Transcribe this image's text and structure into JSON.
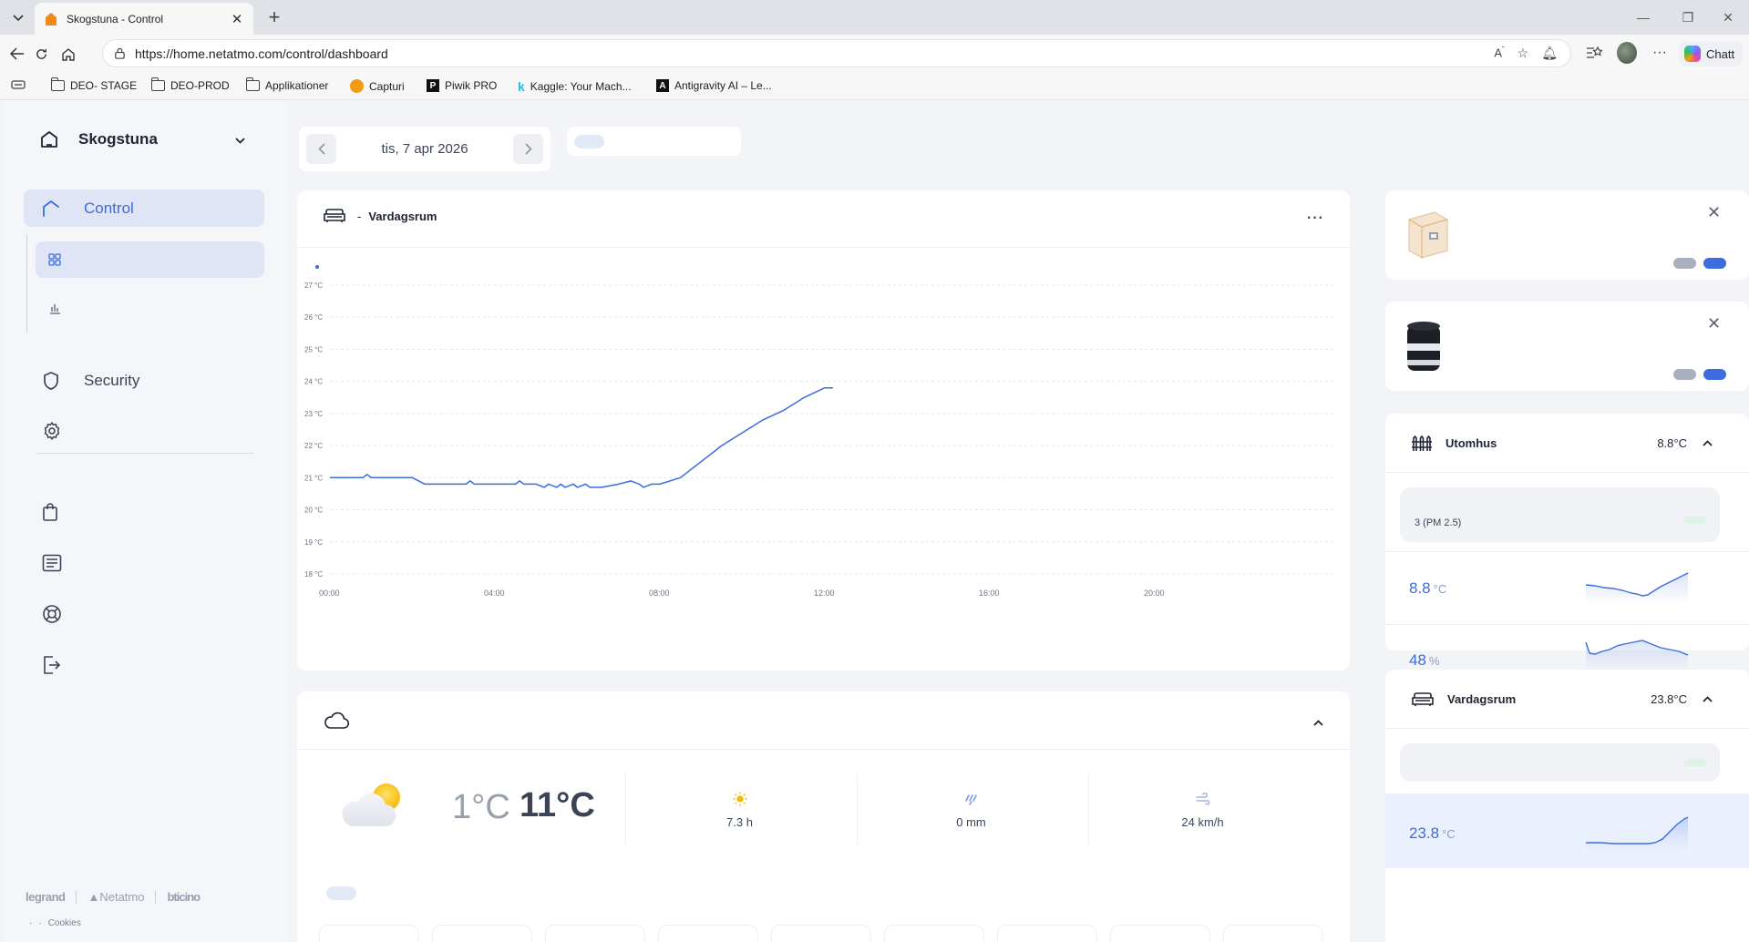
{
  "browser": {
    "tab_title": "Skogstuna - Control",
    "url": "https://home.netatmo.com/control/dashboard",
    "copilot_label": "Chatt",
    "bookmarks": [
      {
        "label": "DEO- STAGE",
        "icon": "folder-icon"
      },
      {
        "label": "DEO-PROD",
        "icon": "folder-icon"
      },
      {
        "label": "Applikationer",
        "icon": "folder-icon"
      },
      {
        "label": "Capturi",
        "icon": "capturi-icon"
      },
      {
        "label": "Piwik PRO",
        "icon": "piwik-icon"
      },
      {
        "label": "Kaggle: Your Mach...",
        "icon": "kaggle-icon"
      },
      {
        "label": "Antigravity AI – Le...",
        "icon": "antigravity-icon"
      }
    ]
  },
  "sidebar": {
    "home_name": "Skogstuna",
    "nav": {
      "control": "Control",
      "security": "Security"
    },
    "brands": {
      "legrand": "legrand",
      "netatmo": "Netatmo",
      "bticino": "bticino"
    },
    "footer_links": [
      "·",
      "·",
      "Cookies"
    ]
  },
  "date_nav": {
    "date": "tis, 7 apr 2026"
  },
  "chart_card": {
    "room": "Vardagsrum",
    "separator": "-",
    "more": "···"
  },
  "chart_data": {
    "type": "line",
    "title": "",
    "xlabel": "",
    "ylabel": "",
    "x_ticks": [
      "00:00",
      "04:00",
      "08:00",
      "12:00",
      "16:00",
      "20:00"
    ],
    "y_ticks": [
      "18 °C",
      "19 °C",
      "20 °C",
      "21 °C",
      "22 °C",
      "23 °C",
      "24 °C",
      "25 °C",
      "26 °C",
      "27 °C"
    ],
    "ylim": [
      18,
      27
    ],
    "xlim_hours": [
      0,
      24
    ],
    "color": "#3c6cde",
    "series": [
      {
        "x_hours": [
          0,
          0.5,
          0.8,
          0.9,
          1.0,
          1.5,
          2.0,
          2.3,
          2.5,
          3.0,
          3.3,
          3.4,
          3.5,
          4.0,
          4.5,
          4.6,
          4.7,
          5.0,
          5.2,
          5.3,
          5.5,
          5.6,
          5.7,
          5.9,
          6.0,
          6.2,
          6.3,
          6.5,
          6.6,
          7.0,
          7.3,
          7.5,
          7.6,
          7.8,
          8.0,
          8.5,
          9.0,
          9.5,
          10.0,
          10.5,
          11.0,
          11.5,
          12.0,
          12.2
        ],
        "values": [
          21.0,
          21.0,
          21.0,
          21.1,
          21.0,
          21.0,
          21.0,
          20.8,
          20.8,
          20.8,
          20.8,
          20.9,
          20.8,
          20.8,
          20.8,
          20.9,
          20.8,
          20.8,
          20.7,
          20.8,
          20.7,
          20.8,
          20.7,
          20.8,
          20.7,
          20.8,
          20.7,
          20.7,
          20.7,
          20.8,
          20.9,
          20.8,
          20.7,
          20.8,
          20.8,
          21.0,
          21.5,
          22.0,
          22.4,
          22.8,
          23.1,
          23.5,
          23.8,
          23.8
        ]
      }
    ],
    "grid": true
  },
  "weather": {
    "icon": "partly-sunny-icon",
    "temp_min": "1°C",
    "temp_max": "11°C",
    "sun_hours": "7.3 h",
    "rain": "0 mm",
    "wind": "24 km/h"
  },
  "right_column": {
    "outdoor": {
      "name": "Utomhus",
      "temp": "8.8°C",
      "air_quality": "3 (PM 2.5)",
      "temperature": {
        "value": "8.8",
        "unit": "°C"
      },
      "humidity": {
        "value": "48",
        "unit": "%"
      }
    },
    "living": {
      "name": "Vardagsrum",
      "temp": "23.8°C",
      "temperature": {
        "value": "23.8",
        "unit": "°C"
      }
    }
  },
  "colors": {
    "accent": "#3c6cde",
    "accent_bg": "#dfe5f5",
    "background": "#f3f4f7"
  }
}
